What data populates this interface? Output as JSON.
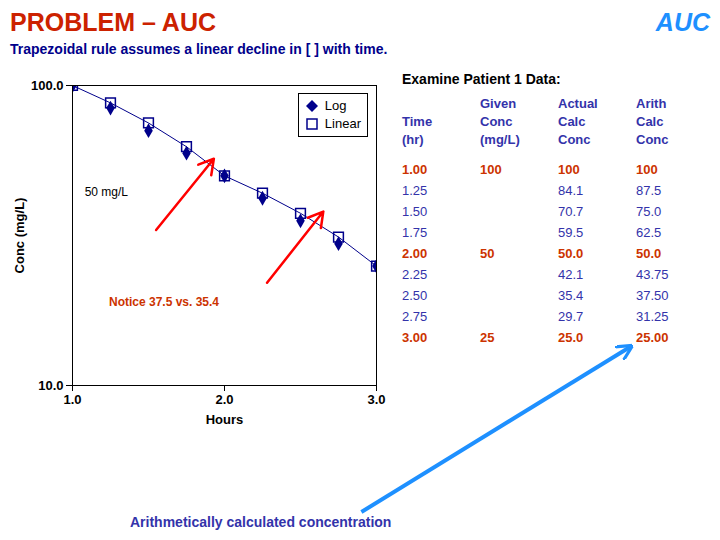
{
  "chart_data": {
    "type": "scatter",
    "title": "PROBLEM – AUC",
    "title_color": "#CC2200",
    "subtitle": "Trapezoidal rule assumes a linear decline in [ ] with time.",
    "subtitle_color": "#00008B",
    "xlabel": "Hours",
    "ylabel": "Conc (mg/L)",
    "x": [
      1.0,
      1.25,
      1.5,
      1.75,
      2.0,
      2.25,
      2.5,
      2.75,
      3.0
    ],
    "series": [
      {
        "name": "Log",
        "color": "#00008B",
        "marker": "diamond",
        "line_style": "none",
        "values": [
          100,
          84.1,
          70.7,
          59.5,
          50.0,
          42.1,
          35.4,
          29.7,
          25.0
        ]
      },
      {
        "name": "Linear",
        "color": "#00008B",
        "marker": "open_square",
        "line_style": "solid",
        "values": [
          100,
          87.5,
          75.0,
          62.5,
          50.0,
          43.75,
          37.5,
          31.25,
          25.0
        ]
      }
    ],
    "log": "y",
    "xlim": [
      1.0,
      3.0
    ],
    "xticks": [
      {
        "value": 1.0,
        "label": "1.0"
      },
      {
        "value": 2.0,
        "label": "2.0"
      },
      {
        "value": 3.0,
        "label": "3.0"
      }
    ],
    "ylim": [
      10.0,
      100.0
    ],
    "yticks": [
      {
        "value": 10.0,
        "label": "10.0"
      },
      {
        "value": 100.0,
        "label": "100.0"
      }
    ],
    "grid": false,
    "legend": "upper right",
    "annotations": [
      {
        "text": "AUC",
        "color": "#1E90FF"
      },
      {
        "text": "50 mg/L",
        "color": "#000000"
      },
      {
        "text": "Notice 37.5 vs. 35.4",
        "color": "#CC3300"
      },
      {
        "text": "Arithmetically calculated concentration",
        "color": "#3333AA"
      }
    ],
    "table": {
      "title": "Examine Patient 1 Data:",
      "color": "#3333AA",
      "highlight_color": "#CC3300",
      "highlight_rows": [
        0,
        4,
        8
      ],
      "header": [
        [
          null,
          "Given",
          "Actual",
          "Arith"
        ],
        [
          "Time",
          "Conc",
          "Calc",
          "Calc"
        ],
        [
          "(hr)",
          "(mg/L)",
          "Conc",
          "Conc"
        ]
      ],
      "rows": [
        [
          "1.00",
          "100",
          "100",
          "100"
        ],
        [
          "1.25",
          null,
          "84.1",
          "87.5"
        ],
        [
          "1.50",
          null,
          "70.7",
          "75.0"
        ],
        [
          "1.75",
          null,
          "59.5",
          "62.5"
        ],
        [
          "2.00",
          "50",
          "50.0",
          "50.0"
        ],
        [
          "2.25",
          null,
          "42.1",
          "43.75"
        ],
        [
          "2.50",
          null,
          "35.4",
          "37.50"
        ],
        [
          "2.75",
          null,
          "29.7",
          "31.25"
        ],
        [
          "3.00",
          "25",
          "25.0",
          "25.00"
        ]
      ]
    }
  }
}
